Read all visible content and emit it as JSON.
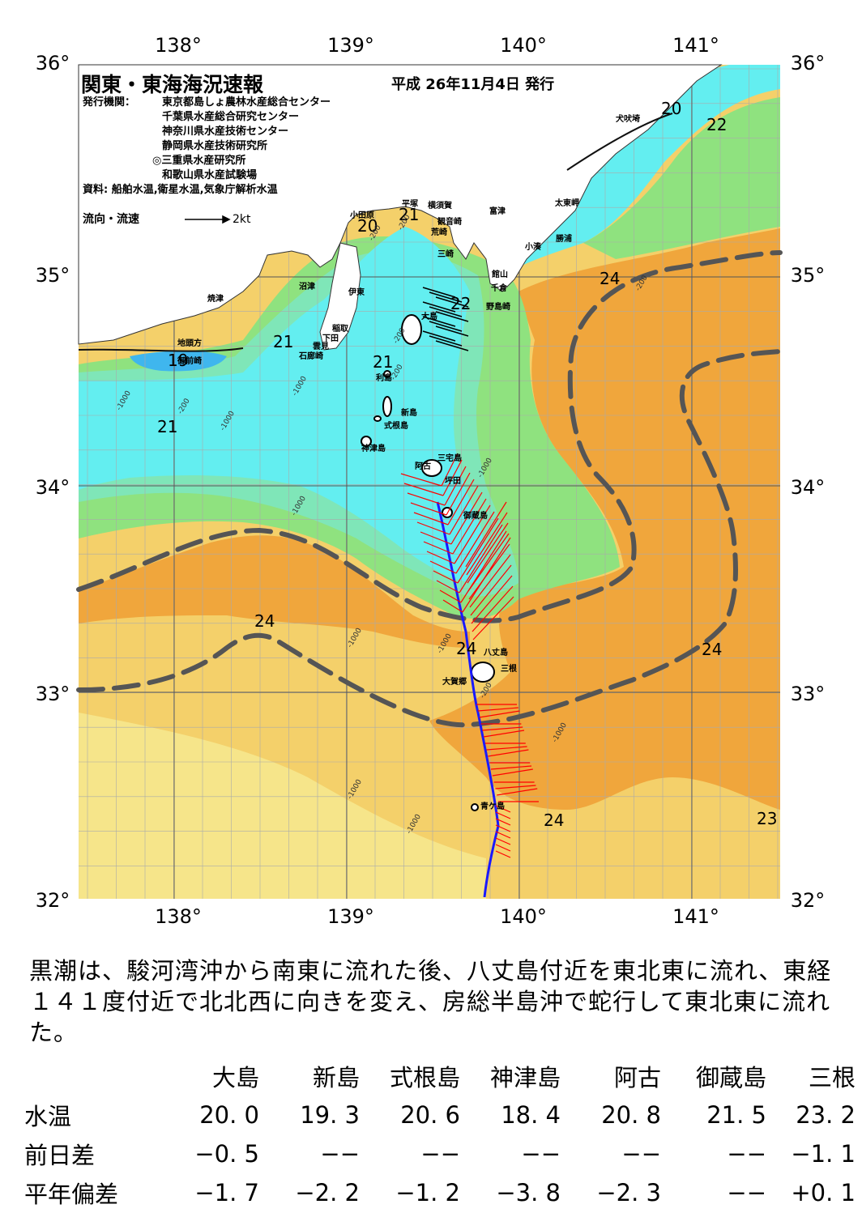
{
  "title": "関東・東海海況速報",
  "issue_date": "平成 26年11月4日 発行",
  "publisher_label": "発行機関：",
  "publishers": [
    "東京都島しょ農林水産総合センター",
    "千葉県水産総合研究センター",
    "神奈川県水産技術センター",
    "静岡県水産技術研究所",
    "◎三重県水産研究所",
    "和歌山県水産試験場"
  ],
  "source": "資料: 船舶水温,衛星水温,気象庁解析水温",
  "flow_legend": {
    "label": "流向・流速",
    "scale": "2kt"
  },
  "axes": {
    "lat_ticks": [
      "36°",
      "35°",
      "34°",
      "33°",
      "32°"
    ],
    "lon_ticks": [
      "138°",
      "139°",
      "140°",
      "141°"
    ]
  },
  "places": [
    "犬吠埼",
    "太東岬",
    "勝浦",
    "小湊",
    "富津",
    "横須賀",
    "観音崎",
    "荒崎",
    "三崎",
    "館山",
    "千倉",
    "野島崎",
    "平塚",
    "小田原",
    "沼津",
    "伊東",
    "稲取",
    "下田",
    "雲見",
    "石廊崎",
    "焼津",
    "地頭方",
    "御前崎",
    "大島",
    "利島",
    "新島",
    "式根島",
    "神津島",
    "三宅島",
    "阿古",
    "坪田",
    "御蔵島",
    "八丈島",
    "三根",
    "大賀郷",
    "青ケ島"
  ],
  "isotherm_labels": [
    "20",
    "22",
    "21",
    "20",
    "22",
    "24",
    "21",
    "19",
    "21",
    "21",
    "24",
    "24",
    "24",
    "24",
    "23"
  ],
  "depth_labels": [
    "-1000",
    "-200"
  ],
  "colors": {
    "sea_19": "#3fb6ee",
    "sea_20": "#63eef0",
    "sea_21": "#7fe6b8",
    "sea_22": "#8fe27f",
    "sea_23": "#f4d06a",
    "sea_24": "#f0a63c",
    "sea_warm_pale": "#f6e58a",
    "kuroshio_axis": "#555555",
    "ship_track": "#1a1aff",
    "current_vector": "#ff0000"
  },
  "summary": "黒潮は、駿河湾沖から南東に流れた後、八丈島付近を東北東に流れ、東経１４１度付近で北北西に向きを変え、房総半島沖で蛇行して東北東に流れた。",
  "observation_table": {
    "stations": [
      "大島",
      "新島",
      "式根島",
      "神津島",
      "阿古",
      "御蔵島",
      "三根"
    ],
    "rows": [
      {
        "label": "水温",
        "values": [
          "20. 0",
          "19. 3",
          "20. 6",
          "18. 4",
          "20. 8",
          "21. 5",
          "23. 2"
        ]
      },
      {
        "label": "前日差",
        "values": [
          "−0. 5",
          "−−",
          "−−",
          "−−",
          "−−",
          "−−",
          "−1. 1"
        ]
      },
      {
        "label": "平年偏差",
        "values": [
          "−1. 7",
          "−2. 2",
          "−1. 2",
          "−3. 8",
          "−2. 3",
          "−−",
          "+0. 1"
        ]
      }
    ]
  }
}
